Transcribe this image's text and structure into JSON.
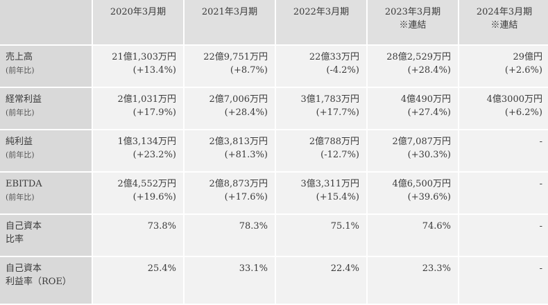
{
  "header": {
    "columns": [
      {
        "label": "2020年3月期",
        "note": ""
      },
      {
        "label": "2021年3月期",
        "note": ""
      },
      {
        "label": "2022年3月期",
        "note": ""
      },
      {
        "label": "2023年3月期",
        "note": "※連結"
      },
      {
        "label": "2024年3月期",
        "note": "※連結"
      }
    ]
  },
  "rows": [
    {
      "label": "売上高",
      "sublabel": "(前年比)",
      "cells": [
        {
          "value": "21億1,303万円",
          "change": "(+13.4%)"
        },
        {
          "value": "22億9,751万円",
          "change": "(+8.7%)"
        },
        {
          "value": "22億33万円",
          "change": "(-4.2%)"
        },
        {
          "value": "28億2,529万円",
          "change": "(+28.4%)"
        },
        {
          "value": "29億円",
          "change": "(+2.6%)"
        }
      ]
    },
    {
      "label": "経常利益",
      "sublabel": "(前年比)",
      "cells": [
        {
          "value": "2億1,031万円",
          "change": "(+17.9%)"
        },
        {
          "value": "2億7,006万円",
          "change": "(+28.4%)"
        },
        {
          "value": "3億1,783万円",
          "change": "(+17.7%)"
        },
        {
          "value": "4億490万円",
          "change": "(+27.4%)"
        },
        {
          "value": "4億3000万円",
          "change": "(+6.2%)"
        }
      ]
    },
    {
      "label": "純利益",
      "sublabel": "(前年比)",
      "cells": [
        {
          "value": "1億3,134万円",
          "change": "(+23.2%)"
        },
        {
          "value": "2億3,813万円",
          "change": "(+81.3%)"
        },
        {
          "value": "2億788万円",
          "change": "(-12.7%)"
        },
        {
          "value": "2億7,087万円",
          "change": "(+30.3%)"
        },
        {
          "value": "-",
          "change": ""
        }
      ]
    },
    {
      "label": "EBITDA",
      "sublabel": "(前年比)",
      "cells": [
        {
          "value": "2億4,552万円",
          "change": "(+19.6%)"
        },
        {
          "value": "2億8,873万円",
          "change": "(+17.6%)"
        },
        {
          "value": "3億3,311万円",
          "change": "(+15.4%)"
        },
        {
          "value": "4億6,500万円",
          "change": "(+39.6%)"
        },
        {
          "value": "-",
          "change": ""
        }
      ]
    },
    {
      "label": "自己資本",
      "sublabel": "比率",
      "cells": [
        {
          "value": "73.8%",
          "change": ""
        },
        {
          "value": "78.3%",
          "change": ""
        },
        {
          "value": "75.1%",
          "change": ""
        },
        {
          "value": "74.6%",
          "change": ""
        },
        {
          "value": "-",
          "change": ""
        }
      ]
    },
    {
      "label": "自己資本",
      "sublabel": "利益率（ROE）",
      "cells": [
        {
          "value": "25.4%",
          "change": ""
        },
        {
          "value": "33.1%",
          "change": ""
        },
        {
          "value": "22.4%",
          "change": ""
        },
        {
          "value": "23.3%",
          "change": ""
        },
        {
          "value": "-",
          "change": ""
        }
      ]
    }
  ]
}
